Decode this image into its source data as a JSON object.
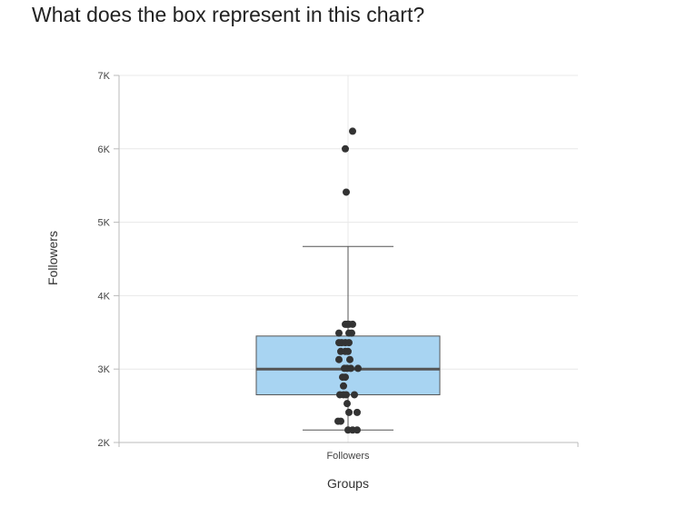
{
  "question": "What does the box represent in this chart?",
  "colors": {
    "box_fill": "#a8d4f2",
    "box_stroke": "#555555",
    "median": "#555555",
    "point": "#333333",
    "grid": "#e8e8e8",
    "axis": "#bbbbbb"
  },
  "chart_data": {
    "type": "box",
    "title": "",
    "xlabel": "Groups",
    "ylabel": "Followers",
    "categories": [
      "Followers"
    ],
    "ylim": [
      2000,
      7000
    ],
    "yticks": [
      2000,
      3000,
      4000,
      5000,
      6000,
      7000
    ],
    "ytick_labels": [
      "2K",
      "3K",
      "4K",
      "5K",
      "6K",
      "7K"
    ],
    "grid": true,
    "box": {
      "min": 2170,
      "q1": 2650,
      "median": 3000,
      "q3": 3450,
      "max": 4670
    },
    "outliers": [
      5410,
      6000,
      6240
    ],
    "points": [
      {
        "x": -0.03,
        "y": 3610
      },
      {
        "x": -0.01,
        "y": 3610
      },
      {
        "x": 0.01,
        "y": 3610
      },
      {
        "x": 0.05,
        "y": 3610
      },
      {
        "x": -0.1,
        "y": 3490
      },
      {
        "x": 0.01,
        "y": 3490
      },
      {
        "x": 0.04,
        "y": 3490
      },
      {
        "x": -0.1,
        "y": 3360
      },
      {
        "x": -0.07,
        "y": 3360
      },
      {
        "x": -0.03,
        "y": 3360
      },
      {
        "x": 0.01,
        "y": 3360
      },
      {
        "x": -0.08,
        "y": 3240
      },
      {
        "x": -0.03,
        "y": 3240
      },
      {
        "x": 0.0,
        "y": 3240
      },
      {
        "x": -0.1,
        "y": 3130
      },
      {
        "x": 0.02,
        "y": 3130
      },
      {
        "x": -0.04,
        "y": 3010
      },
      {
        "x": -0.01,
        "y": 3010
      },
      {
        "x": 0.03,
        "y": 3010
      },
      {
        "x": 0.11,
        "y": 3010
      },
      {
        "x": -0.06,
        "y": 2890
      },
      {
        "x": -0.03,
        "y": 2890
      },
      {
        "x": -0.05,
        "y": 2770
      },
      {
        "x": -0.09,
        "y": 2650
      },
      {
        "x": -0.05,
        "y": 2650
      },
      {
        "x": -0.02,
        "y": 2650
      },
      {
        "x": 0.07,
        "y": 2650
      },
      {
        "x": -0.01,
        "y": 2530
      },
      {
        "x": 0.01,
        "y": 2410
      },
      {
        "x": 0.1,
        "y": 2410
      },
      {
        "x": -0.11,
        "y": 2290
      },
      {
        "x": -0.08,
        "y": 2290
      },
      {
        "x": 0.0,
        "y": 2170
      },
      {
        "x": 0.05,
        "y": 2170
      },
      {
        "x": 0.1,
        "y": 2170
      }
    ]
  }
}
